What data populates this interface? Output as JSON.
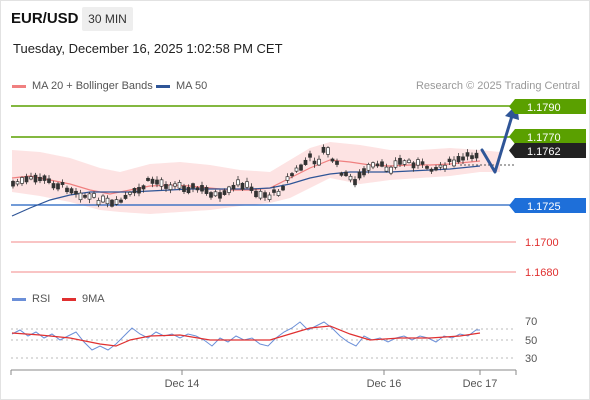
{
  "header": {
    "symbol": "EUR/USD",
    "timeframe": "30 MIN"
  },
  "datetime": "Tuesday, December 16, 2025 1:02:58 PM CET",
  "legend": {
    "ma20": {
      "label": "MA 20 + Bollinger Bands",
      "color": "#f08080"
    },
    "ma50": {
      "label": "MA 50",
      "color": "#2f5597"
    }
  },
  "credit": "Research © 2025 Trading Central",
  "levels": [
    {
      "value": "1.1790",
      "style": "badge",
      "color": "#5aa000"
    },
    {
      "value": "1.1770",
      "style": "badge",
      "color": "#5aa000"
    },
    {
      "value": "1.1762",
      "style": "badge",
      "color": "#222222"
    },
    {
      "value": "1.1725",
      "style": "badge",
      "color": "#1e6fd9"
    },
    {
      "value": "1.1700",
      "style": "text",
      "color": "#e03030"
    },
    {
      "value": "1.1680",
      "style": "text",
      "color": "#e03030"
    }
  ],
  "rsi_panel": {
    "rsi_label": "RSI",
    "ma_label": "9MA",
    "rsi_color": "#6b8fd8",
    "ma_color": "#e03030",
    "ticks": [
      "70",
      "50",
      "30"
    ]
  },
  "x_axis": {
    "ticks": [
      "Dec 14",
      "Dec 16",
      "Dec 17"
    ]
  },
  "chart_data": {
    "type": "candlestick",
    "price_range": [
      1.167,
      1.18
    ],
    "current_price": 1.1762,
    "resistance": [
      1.179,
      1.177
    ],
    "support": [
      1.1725,
      1.17,
      1.168
    ],
    "rsi_range": [
      20,
      80
    ],
    "rsi_levels": [
      70,
      50,
      30
    ]
  }
}
